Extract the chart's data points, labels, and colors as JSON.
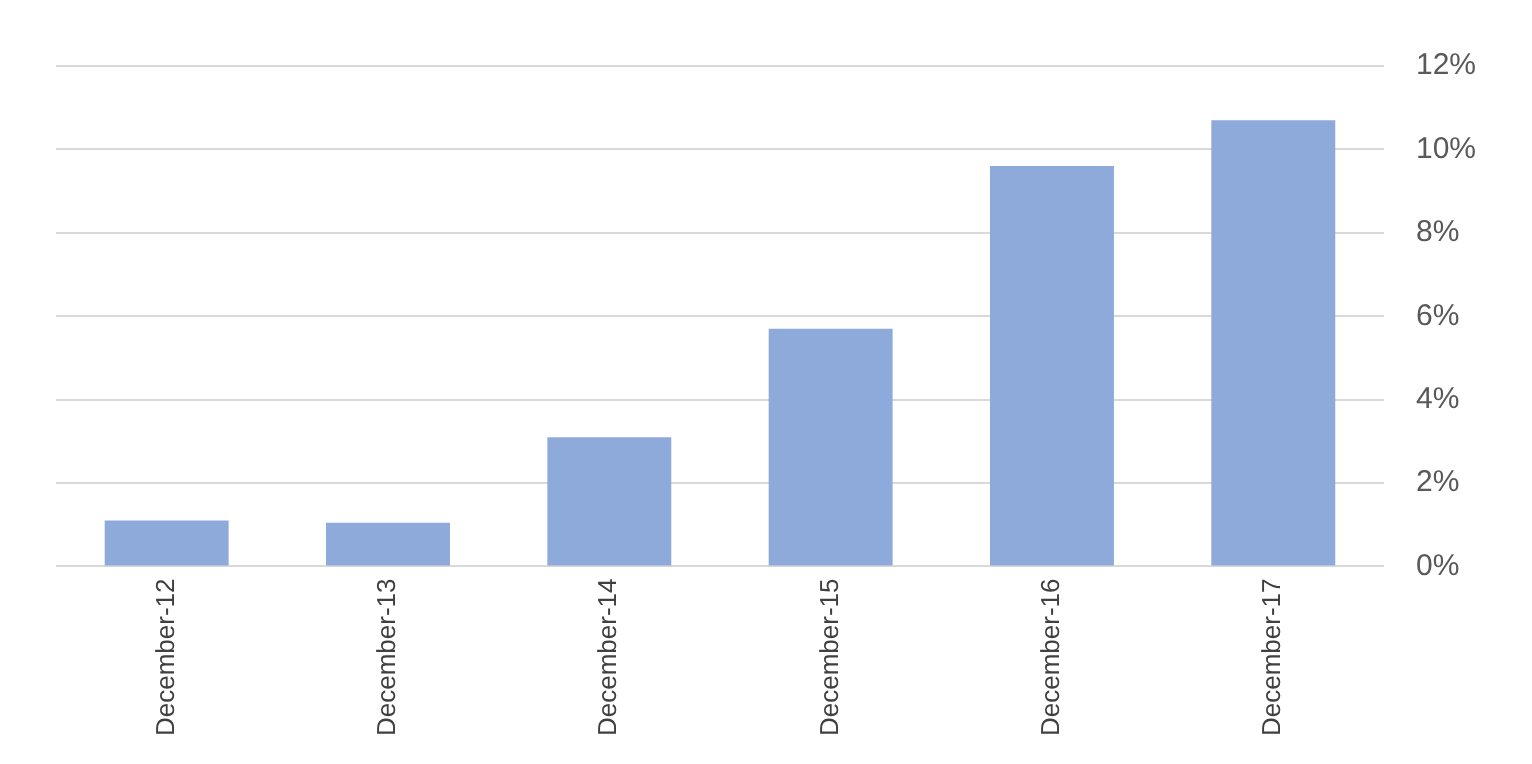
{
  "chart_data": {
    "type": "bar",
    "categories": [
      "December-12",
      "December-13",
      "December-14",
      "December-15",
      "December-16",
      "December-17"
    ],
    "values": [
      1.1,
      1.05,
      3.1,
      5.7,
      9.6,
      10.7
    ],
    "color": "#8eaadb",
    "ylim": [
      0,
      12
    ],
    "yticks": [
      {
        "value": 0,
        "label": "0%"
      },
      {
        "value": 2,
        "label": "2%"
      },
      {
        "value": 4,
        "label": "4%"
      },
      {
        "value": 6,
        "label": "6%"
      },
      {
        "value": 8,
        "label": "8%"
      },
      {
        "value": 10,
        "label": "10%"
      },
      {
        "value": 12,
        "label": "12%"
      }
    ],
    "grid": "y",
    "legend": false
  }
}
